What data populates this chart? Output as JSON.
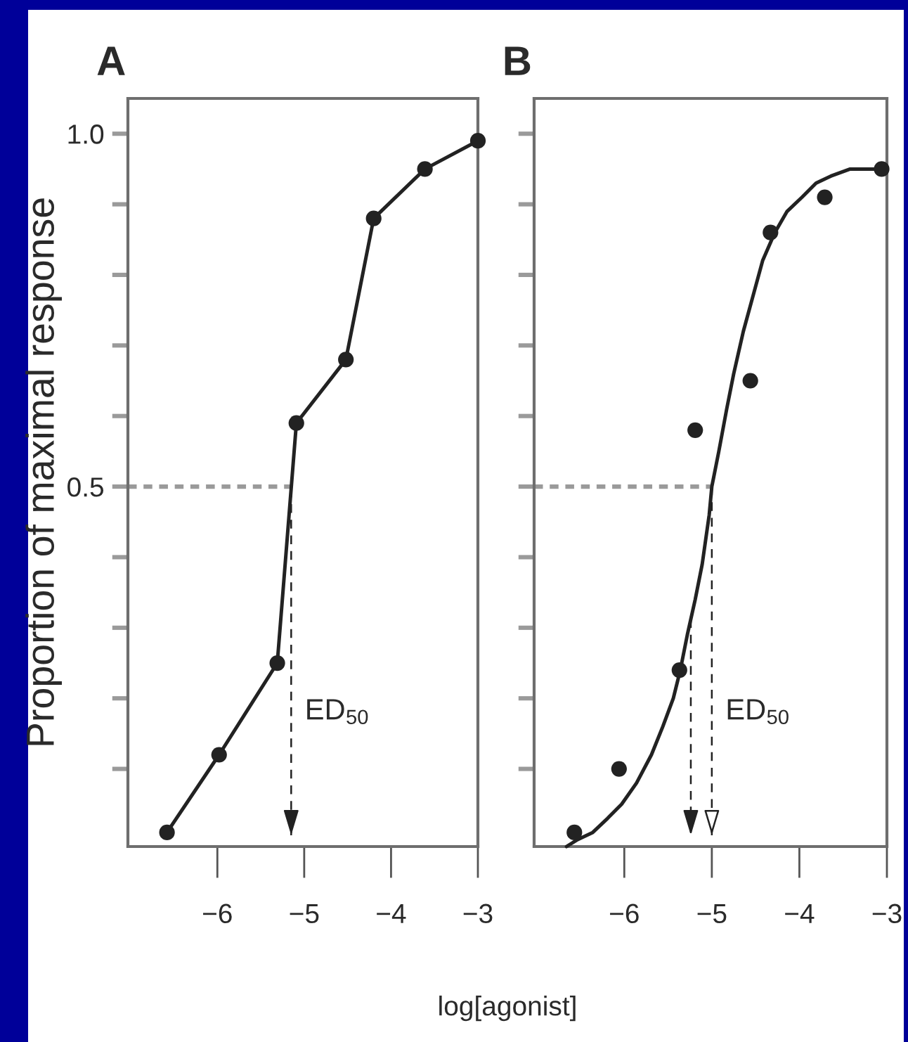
{
  "chart_data": [
    {
      "type": "line",
      "title": "A",
      "xlabel": "log[agonist]",
      "ylabel": "Proportion of maximal response",
      "series": [
        {
          "x": [
            -6.58,
            -5.98,
            -5.31,
            -5.09,
            -4.52,
            -4.2,
            -3.61,
            -3.0
          ],
          "values": [
            0.01,
            0.12,
            0.25,
            0.59,
            0.68,
            0.88,
            0.95,
            0.99
          ],
          "color": "#222222",
          "marker": "circle",
          "line_style": "solid"
        }
      ],
      "xlim": [
        -7.03,
        -3
      ],
      "xticks": [
        {
          "value": -6,
          "label": "−6"
        },
        {
          "value": -5,
          "label": "−5"
        },
        {
          "value": -4,
          "label": "−4"
        },
        {
          "value": -3,
          "label": "−3"
        }
      ],
      "ylim": [
        -0.01,
        1.05
      ],
      "yticks": [
        {
          "value": 0.1,
          "label": null
        },
        {
          "value": 0.2,
          "label": null
        },
        {
          "value": 0.3,
          "label": null
        },
        {
          "value": 0.4,
          "label": null
        },
        {
          "value": 0.5,
          "label": "0.5"
        },
        {
          "value": 0.6,
          "label": null
        },
        {
          "value": 0.7,
          "label": null
        },
        {
          "value": 0.8,
          "label": null
        },
        {
          "value": 0.9,
          "label": null
        },
        {
          "value": 1,
          "label": "1.0"
        }
      ],
      "ref_lines": [
        {
          "axis": "y",
          "value": 0.5,
          "color": "#9a9a9a",
          "line_style": "dashed"
        },
        {
          "axis": "x",
          "value": -5.15,
          "label": "ED$_{50}$",
          "color": "#222222",
          "line_style": "dashed"
        }
      ]
    },
    {
      "type": "scatter",
      "title": "B",
      "series": [
        {
          "x": [
            -6.57,
            -6.06,
            -5.37,
            -5.19,
            -4.56,
            -4.33,
            -3.71,
            -3.06
          ],
          "values": [
            0.01,
            0.1,
            0.24,
            0.58,
            0.65,
            0.86,
            0.91,
            0.95
          ],
          "color": "#222222",
          "marker": "circle"
        },
        {
          "type": "line",
          "x": [
            -6.66,
            -6.53,
            -6.36,
            -6.19,
            -6.03,
            -5.86,
            -5.69,
            -5.56,
            -5.44,
            -5.36,
            -5.28,
            -5.19,
            -5.11,
            -5.03,
            -5.0,
            -4.92,
            -4.83,
            -4.75,
            -4.64,
            -4.53,
            -4.42,
            -4.28,
            -4.14,
            -3.97,
            -3.81,
            -3.64,
            -3.42,
            -3.19,
            -3.0
          ],
          "values": [
            -0.01,
            0.0,
            0.01,
            0.03,
            0.05,
            0.08,
            0.12,
            0.16,
            0.2,
            0.24,
            0.29,
            0.34,
            0.39,
            0.46,
            0.5,
            0.55,
            0.61,
            0.66,
            0.72,
            0.77,
            0.82,
            0.86,
            0.89,
            0.91,
            0.93,
            0.94,
            0.95,
            0.95,
            0.95
          ],
          "color": "#222222",
          "marker": "none",
          "line_style": "solid"
        }
      ],
      "xlim": [
        -7.03,
        -3
      ],
      "xticks": [
        {
          "value": -6,
          "label": "−6"
        },
        {
          "value": -5,
          "label": "−5"
        },
        {
          "value": -4,
          "label": "−4"
        },
        {
          "value": -3,
          "label": "−3"
        }
      ],
      "ylim": [
        -0.01,
        1.05
      ],
      "yticks": [
        0.1,
        0.2,
        0.3,
        0.4,
        0.5,
        0.6,
        0.7,
        0.8,
        0.9,
        1
      ],
      "tick_labels": "x",
      "ref_lines": [
        {
          "axis": "y",
          "value": 0.5,
          "color": "#9a9a9a",
          "line_style": "dashed"
        },
        {
          "axis": "x",
          "value": -5.24,
          "color": "#222222",
          "line_style": "dashed"
        },
        {
          "axis": "x",
          "value": -5.0,
          "label": "ED$_{50}$",
          "color": "#222222",
          "line_style": "dashed"
        }
      ]
    }
  ]
}
